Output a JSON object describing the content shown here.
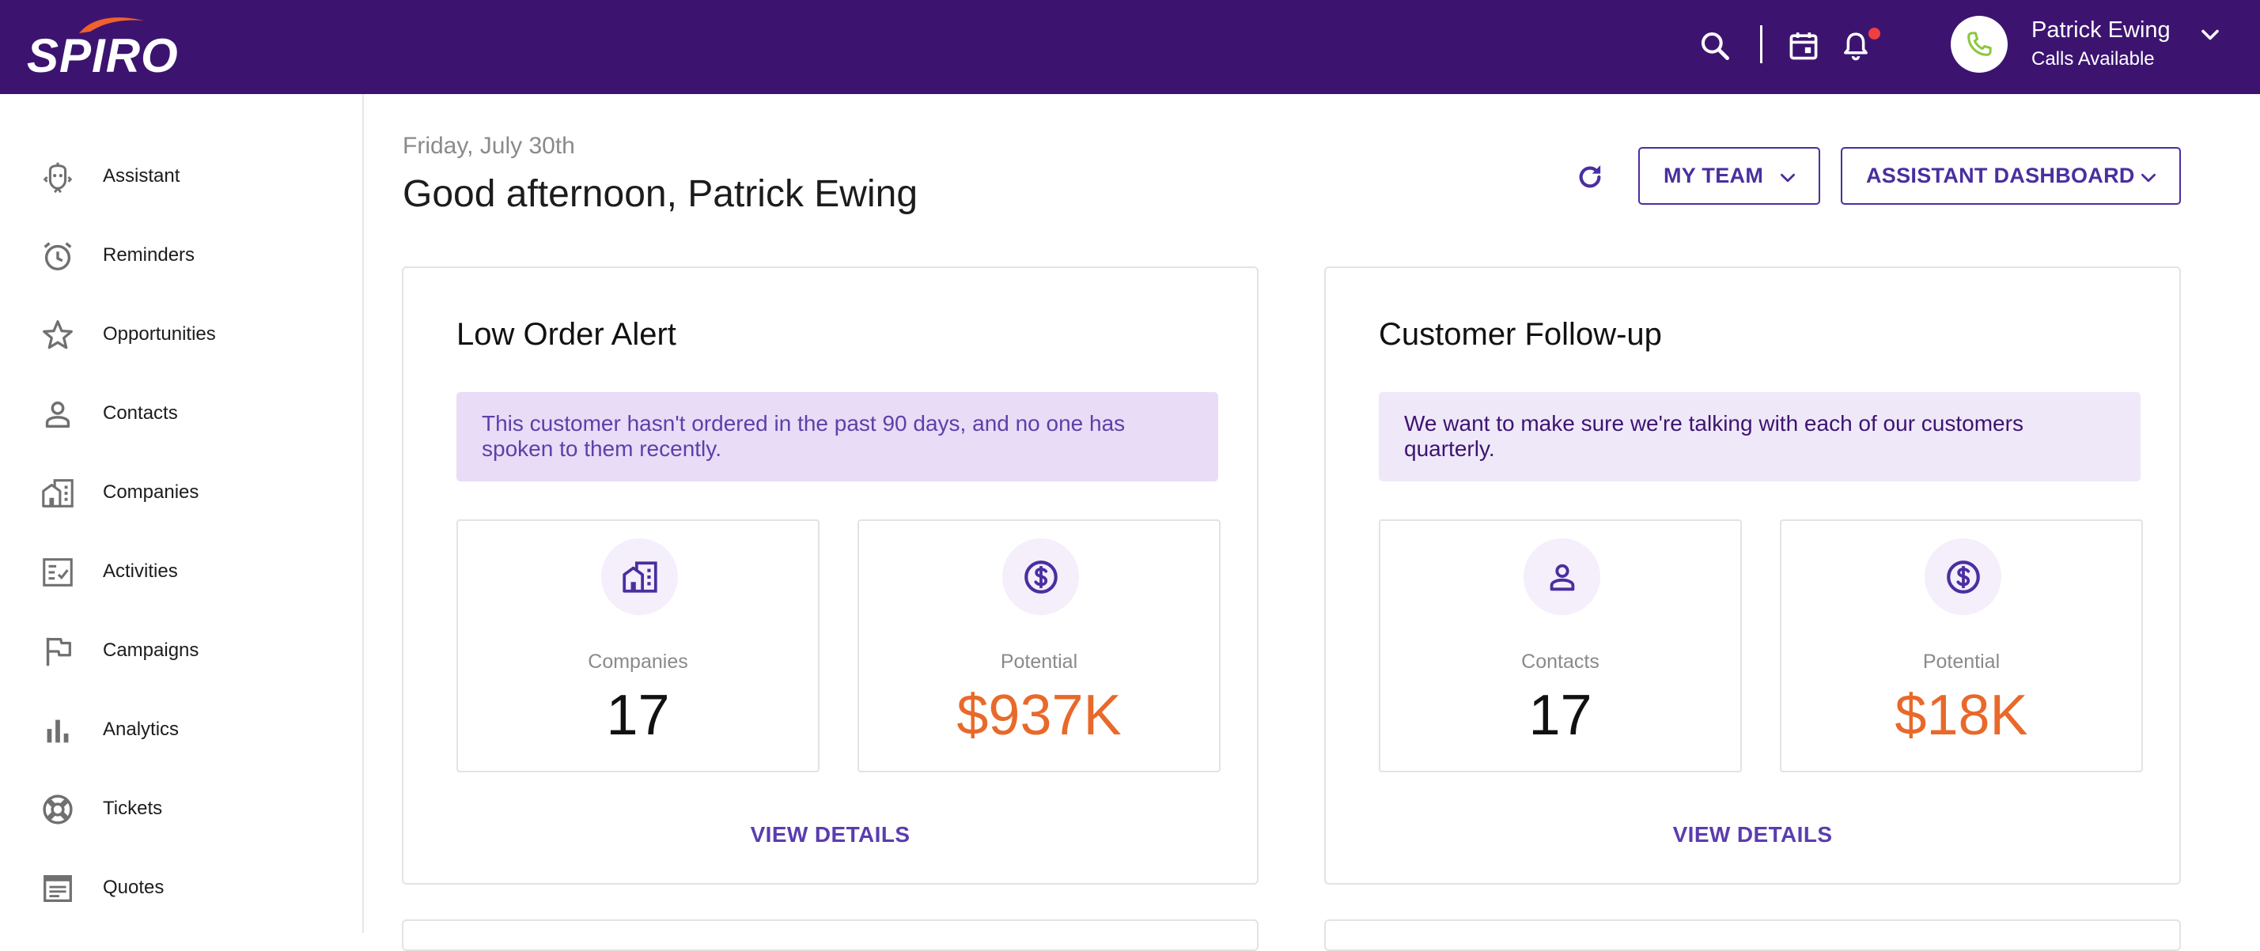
{
  "header": {
    "logo_text": "SPIRO",
    "user_name": "Patrick Ewing",
    "user_status": "Calls Available",
    "icons": [
      "search-icon",
      "calendar-icon",
      "bell-icon",
      "phone-icon",
      "chevron-down-icon"
    ],
    "colors": {
      "bar": "#3c1470",
      "logo_accent": "#f0612d",
      "notification": "#ef3f3f",
      "phone": "#8dc63f"
    }
  },
  "sidebar": {
    "items": [
      {
        "label": "Assistant",
        "icon": "assistant-icon"
      },
      {
        "label": "Reminders",
        "icon": "alarm-clock-icon"
      },
      {
        "label": "Opportunities",
        "icon": "star-icon"
      },
      {
        "label": "Contacts",
        "icon": "person-icon"
      },
      {
        "label": "Companies",
        "icon": "building-icon"
      },
      {
        "label": "Activities",
        "icon": "checklist-icon"
      },
      {
        "label": "Campaigns",
        "icon": "flag-icon"
      },
      {
        "label": "Analytics",
        "icon": "bar-chart-icon"
      },
      {
        "label": "Tickets",
        "icon": "lifebuoy-icon"
      },
      {
        "label": "Quotes",
        "icon": "document-icon"
      }
    ]
  },
  "main": {
    "date": "Friday, July 30th",
    "greeting": "Good afternoon, Patrick Ewing",
    "team_button": "MY TEAM",
    "dashboard_button": "ASSISTANT DASHBOARD",
    "cards": [
      {
        "title": "Low Order Alert",
        "banner": "This customer hasn't ordered in the past 90 days, and no one has spoken to them recently.",
        "stats": [
          {
            "label": "Companies",
            "value": "17",
            "icon": "building-icon"
          },
          {
            "label": "Potential",
            "value": "$937K",
            "icon": "dollar-circle-icon"
          }
        ],
        "link": "VIEW DETAILS"
      },
      {
        "title": "Customer Follow-up",
        "banner": "We want to make sure we're talking with each of our customers quarterly.",
        "stats": [
          {
            "label": "Contacts",
            "value": "17",
            "icon": "person-icon"
          },
          {
            "label": "Potential",
            "value": "$18K",
            "icon": "dollar-circle-icon"
          }
        ],
        "link": "VIEW DETAILS"
      }
    ],
    "colors": {
      "accent": "#4b2e9f",
      "money": "#e8692a",
      "banner_1": "#e8dcf7",
      "banner_2": "#efe8f9"
    }
  }
}
